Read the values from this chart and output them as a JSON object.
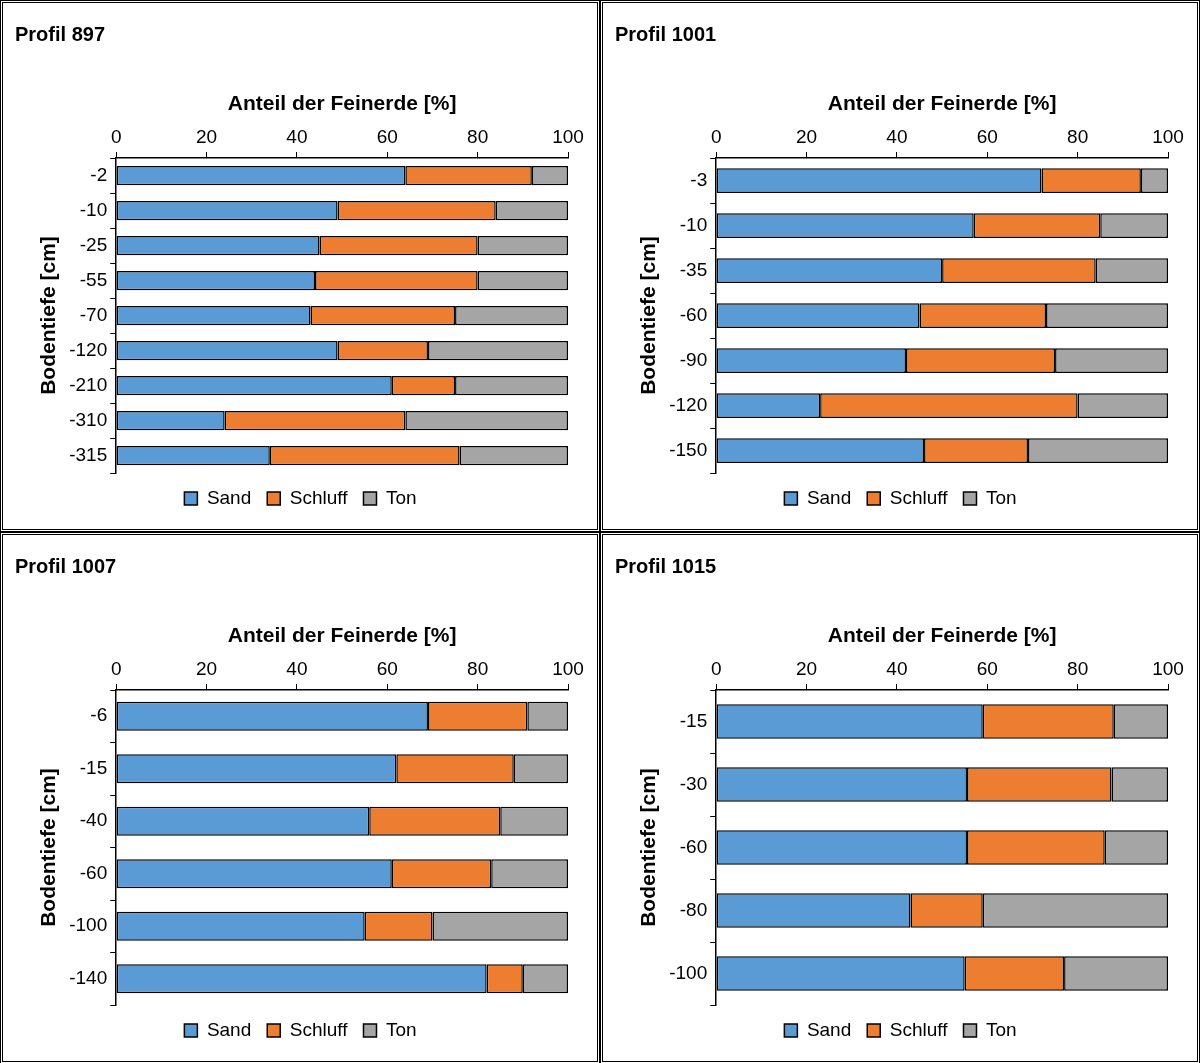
{
  "chart_data": [
    {
      "type": "bar",
      "title": "Profil 897",
      "xlabel": "Anteil der Feinerde [%]",
      "ylabel": "Bodentiefe [cm]",
      "orientation": "horizontal",
      "stacked": true,
      "legend": "bottom",
      "xlim": [
        0,
        100
      ],
      "xticks": [
        0,
        20,
        40,
        60,
        80,
        100
      ],
      "categories": [
        "-2",
        "-10",
        "-25",
        "-55",
        "-70",
        "-120",
        "-210",
        "-310",
        "-315"
      ],
      "series": [
        {
          "name": "Sand",
          "color": "#5b9bd5",
          "values": [
            64,
            49,
            45,
            44,
            43,
            49,
            61,
            24,
            34
          ]
        },
        {
          "name": "Schluff",
          "color": "#ed7d31",
          "values": [
            28,
            35,
            35,
            36,
            32,
            20,
            14,
            40,
            42
          ]
        },
        {
          "name": "Ton",
          "color": "#a5a5a5",
          "values": [
            8,
            16,
            20,
            20,
            25,
            31,
            25,
            36,
            24
          ]
        }
      ]
    },
    {
      "type": "bar",
      "title": "Profil 1001",
      "xlabel": "Anteil der Feinerde [%]",
      "ylabel": "Bodentiefe [cm]",
      "orientation": "horizontal",
      "stacked": true,
      "legend": "bottom",
      "xlim": [
        0,
        100
      ],
      "xticks": [
        0,
        20,
        40,
        60,
        80,
        100
      ],
      "categories": [
        "-3",
        "-10",
        "-35",
        "-60",
        "-90",
        "-120",
        "-150"
      ],
      "series": [
        {
          "name": "Sand",
          "color": "#5b9bd5",
          "values": [
            72,
            57,
            50,
            45,
            42,
            23,
            46
          ]
        },
        {
          "name": "Schluff",
          "color": "#ed7d31",
          "values": [
            22,
            28,
            34,
            28,
            33,
            57,
            23
          ]
        },
        {
          "name": "Ton",
          "color": "#a5a5a5",
          "values": [
            6,
            15,
            16,
            27,
            25,
            20,
            31
          ]
        }
      ]
    },
    {
      "type": "bar",
      "title": "Profil 1007",
      "xlabel": "Anteil der Feinerde [%]",
      "ylabel": "Bodentiefe [cm]",
      "orientation": "horizontal",
      "stacked": true,
      "legend": "bottom",
      "xlim": [
        0,
        100
      ],
      "xticks": [
        0,
        20,
        40,
        60,
        80,
        100
      ],
      "categories": [
        "-6",
        "-15",
        "-40",
        "-60",
        "-100",
        "-140"
      ],
      "series": [
        {
          "name": "Sand",
          "color": "#5b9bd5",
          "values": [
            69,
            62,
            56,
            61,
            55,
            82
          ]
        },
        {
          "name": "Schluff",
          "color": "#ed7d31",
          "values": [
            22,
            26,
            29,
            22,
            15,
            8
          ]
        },
        {
          "name": "Ton",
          "color": "#a5a5a5",
          "values": [
            9,
            12,
            15,
            17,
            30,
            10
          ]
        }
      ]
    },
    {
      "type": "bar",
      "title": "Profil 1015",
      "xlabel": "Anteil der Feinerde [%]",
      "ylabel": "Bodentiefe [cm]",
      "orientation": "horizontal",
      "stacked": true,
      "legend": "bottom",
      "xlim": [
        0,
        100
      ],
      "xticks": [
        0,
        20,
        40,
        60,
        80,
        100
      ],
      "categories": [
        "-15",
        "-30",
        "-60",
        "-80",
        "-100"
      ],
      "series": [
        {
          "name": "Sand",
          "color": "#5b9bd5",
          "values": [
            59,
            55.5,
            55.5,
            43,
            55
          ]
        },
        {
          "name": "Schluff",
          "color": "#ed7d31",
          "values": [
            29,
            32,
            30.5,
            16,
            22
          ]
        },
        {
          "name": "Ton",
          "color": "#a5a5a5",
          "values": [
            12,
            12.5,
            14,
            41,
            23
          ]
        }
      ]
    }
  ]
}
